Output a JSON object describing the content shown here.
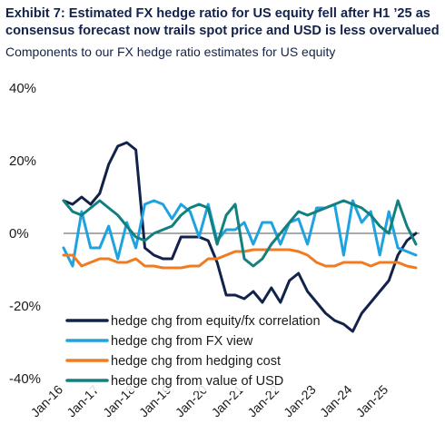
{
  "header": {
    "title": "Exhibit 7: Estimated FX hedge ratio for US equity fell after H1 ’25 as consensus forecast now trails spot price and USD is less overvalued",
    "subtitle": "Components to our FX hedge ratio estimates for US equity"
  },
  "chart_data": {
    "type": "line",
    "ylim": [
      -40,
      40
    ],
    "yticks": [
      {
        "value": 40,
        "label": "40%"
      },
      {
        "value": 20,
        "label": "20%"
      },
      {
        "value": 0,
        "label": "0%"
      },
      {
        "value": -20,
        "label": "-20%"
      },
      {
        "value": -40,
        "label": "-40%"
      }
    ],
    "xlim": [
      2016.0,
      2025.85
    ],
    "xticks": [
      {
        "value": 2016,
        "label": "Jan-16"
      },
      {
        "value": 2017,
        "label": "Jan-17"
      },
      {
        "value": 2018,
        "label": "Jan-18"
      },
      {
        "value": 2019,
        "label": "Jan-19"
      },
      {
        "value": 2020,
        "label": "Jan-20"
      },
      {
        "value": 2021,
        "label": "Jan-21"
      },
      {
        "value": 2022,
        "label": "Jan-22"
      },
      {
        "value": 2023,
        "label": "Jan-23"
      },
      {
        "value": 2024,
        "label": "Jan-24"
      },
      {
        "value": 2025,
        "label": "Jan-25"
      }
    ],
    "zero_line": true,
    "grid": false,
    "legend_position": "bottom-left",
    "series": [
      {
        "name": "hedge chg from equity/fx correlation",
        "color": "#12224a",
        "x": [
          2016.0,
          2016.25,
          2016.5,
          2016.75,
          2017.0,
          2017.25,
          2017.5,
          2017.75,
          2018.0,
          2018.25,
          2018.5,
          2018.75,
          2019.0,
          2019.25,
          2019.5,
          2019.75,
          2020.0,
          2020.25,
          2020.5,
          2020.75,
          2021.0,
          2021.25,
          2021.5,
          2021.75,
          2022.0,
          2022.25,
          2022.5,
          2022.75,
          2023.0,
          2023.25,
          2023.5,
          2023.75,
          2024.0,
          2024.25,
          2024.5,
          2024.75,
          2025.0,
          2025.25,
          2025.5,
          2025.75
        ],
        "values": [
          9,
          8,
          10,
          8,
          11,
          19,
          24,
          25,
          23,
          -4,
          -6,
          -7,
          -7,
          -1,
          -1,
          -1,
          -2,
          -8,
          -17,
          -17,
          -18,
          -16,
          -19,
          -15,
          -19,
          -13,
          -11,
          -16,
          -19,
          -22,
          -24,
          -25,
          -27,
          -22,
          -19,
          -16,
          -13,
          -6,
          -2,
          0
        ]
      },
      {
        "name": "hedge chg from FX view",
        "color": "#1ea2e0",
        "x": [
          2016.0,
          2016.25,
          2016.5,
          2016.75,
          2017.0,
          2017.25,
          2017.5,
          2017.75,
          2018.0,
          2018.25,
          2018.5,
          2018.75,
          2019.0,
          2019.25,
          2019.5,
          2019.75,
          2020.0,
          2020.25,
          2020.5,
          2020.75,
          2021.0,
          2021.25,
          2021.5,
          2021.75,
          2022.0,
          2022.25,
          2022.5,
          2022.75,
          2023.0,
          2023.25,
          2023.5,
          2023.75,
          2024.0,
          2024.25,
          2024.5,
          2024.75,
          2025.0,
          2025.25,
          2025.5,
          2025.75
        ],
        "values": [
          -4,
          -9,
          6,
          -4,
          -4,
          2,
          -7,
          3,
          -4,
          8,
          9,
          8,
          4,
          8,
          6,
          -1,
          8,
          -2,
          1,
          1,
          3,
          -3,
          3,
          3,
          -3,
          3,
          4,
          -3,
          7,
          7,
          8,
          -6,
          9,
          3,
          6,
          -6,
          6,
          -4,
          -5,
          -6
        ]
      },
      {
        "name": "hedge chg from hedging cost",
        "color": "#f07b20",
        "x": [
          2016.0,
          2016.25,
          2016.5,
          2016.75,
          2017.0,
          2017.25,
          2017.5,
          2017.75,
          2018.0,
          2018.25,
          2018.5,
          2018.75,
          2019.0,
          2019.25,
          2019.5,
          2019.75,
          2020.0,
          2020.25,
          2020.5,
          2020.75,
          2021.0,
          2021.25,
          2021.5,
          2021.75,
          2022.0,
          2022.25,
          2022.5,
          2022.75,
          2023.0,
          2023.25,
          2023.5,
          2023.75,
          2024.0,
          2024.25,
          2024.5,
          2024.75,
          2025.0,
          2025.25,
          2025.5,
          2025.75
        ],
        "values": [
          -6,
          -6,
          -9,
          -8,
          -7,
          -7,
          -8,
          -8,
          -7,
          -9,
          -9,
          -9.5,
          -9.5,
          -9.5,
          -9,
          -9,
          -7,
          -7,
          -6,
          -5,
          -5,
          -4.5,
          -4.5,
          -4.5,
          -4.5,
          -4.5,
          -5,
          -6,
          -8,
          -9,
          -9,
          -8,
          -8,
          -8,
          -9,
          -8,
          -8,
          -8,
          -9,
          -9.5
        ]
      },
      {
        "name": "hedge chg from value of USD",
        "color": "#138080",
        "x": [
          2016.0,
          2016.25,
          2016.5,
          2016.75,
          2017.0,
          2017.25,
          2017.5,
          2017.75,
          2018.0,
          2018.25,
          2018.5,
          2018.75,
          2019.0,
          2019.25,
          2019.5,
          2019.75,
          2020.0,
          2020.25,
          2020.5,
          2020.75,
          2021.0,
          2021.25,
          2021.5,
          2021.75,
          2022.0,
          2022.25,
          2022.5,
          2022.75,
          2023.0,
          2023.25,
          2023.5,
          2023.75,
          2024.0,
          2024.25,
          2024.5,
          2024.75,
          2025.0,
          2025.25,
          2025.5,
          2025.75
        ],
        "values": [
          9,
          6,
          5,
          7,
          9,
          7,
          5,
          2,
          -1,
          -2,
          0,
          1,
          2,
          5,
          7,
          8,
          7,
          -3,
          5,
          8,
          -7,
          -9,
          -7,
          -3,
          0,
          3,
          6,
          5,
          6,
          7,
          8,
          9,
          8,
          7,
          5,
          2,
          0,
          9,
          2,
          -3
        ]
      }
    ]
  }
}
